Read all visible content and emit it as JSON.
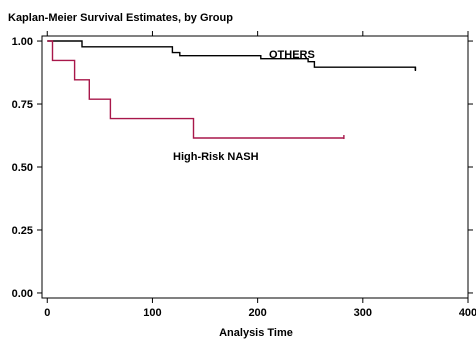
{
  "chart_data": {
    "type": "line",
    "title": "Kaplan-Meier Survival Estimates, by Group",
    "xlabel": "Analysis Time",
    "ylabel": "",
    "xlim": [
      -5,
      400
    ],
    "ylim": [
      -0.02,
      1.02
    ],
    "xticks": [
      0,
      100,
      200,
      300,
      400
    ],
    "xtick_labels": [
      "0",
      "100",
      "200",
      "300",
      "400"
    ],
    "yticks": [
      0,
      0.25,
      0.5,
      0.75,
      1.0
    ],
    "ytick_labels": [
      "0.00",
      "0.25",
      "0.50",
      "0.75",
      "1.00"
    ],
    "step": true,
    "grid": false,
    "series": [
      {
        "name": "OTHERS",
        "color": "#000000",
        "x": [
          0,
          33,
          119,
          126,
          203,
          248,
          254,
          350
        ],
        "y": [
          1.0,
          0.977,
          0.954,
          0.942,
          0.93,
          0.918,
          0.896,
          0.885
        ]
      },
      {
        "name": "High-Risk NASH",
        "color": "#a8174a",
        "x": [
          0,
          5,
          26,
          40,
          60,
          139,
          282
        ],
        "y": [
          1.0,
          0.923,
          0.846,
          0.769,
          0.692,
          0.615,
          0.615
        ]
      }
    ]
  }
}
